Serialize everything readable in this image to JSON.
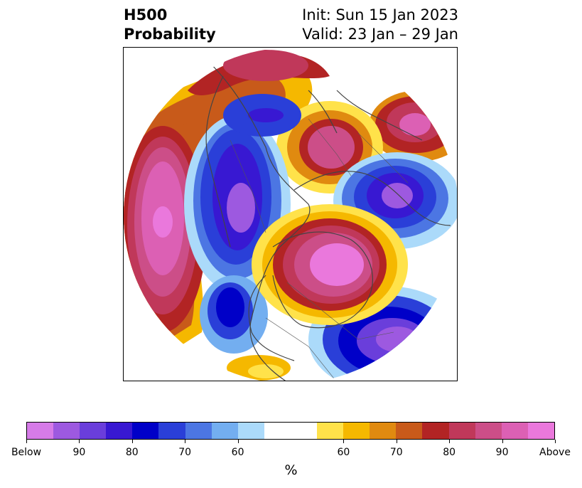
{
  "header": {
    "title_line1": "H500",
    "title_line2": "Probability",
    "init_text": "Init: Sun 15 Jan 2023",
    "valid_text": "Valid: 23 Jan – 29 Jan"
  },
  "colorbar": {
    "label": "%",
    "colors": [
      "#d67be8",
      "#9d59e0",
      "#6a3edb",
      "#3818d2",
      "#0000c8",
      "#2a3fd8",
      "#4c76e3",
      "#73aef0",
      "#abdafa",
      "#ffffff",
      "#ffffff",
      "#ffe24a",
      "#f5b800",
      "#e08a10",
      "#c85a1a",
      "#b22424",
      "#c0385a",
      "#cc4e88",
      "#dc60b4",
      "#ea78dc"
    ],
    "tick_labels": [
      "Below",
      "90",
      "80",
      "70",
      "60",
      "60",
      "70",
      "80",
      "90",
      "Above"
    ]
  },
  "map": {
    "legend_colors": {
      "above": "#ea78dc",
      "below": "#9d59e0",
      "neutral": "#ffffff",
      "coast": "#444444"
    }
  }
}
